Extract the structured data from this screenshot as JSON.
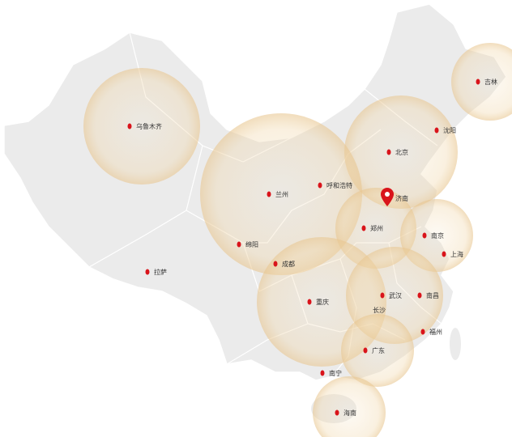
{
  "colors": {
    "land": "#ebebeb",
    "border": "#ffffff",
    "marker": "#d9141b",
    "halo": "#e8c690"
  },
  "highlight": {
    "name": "济南",
    "icon": "map-pin-icon"
  },
  "cities": [
    {
      "name": "乌鲁木齐",
      "dot": [
        160,
        156
      ],
      "halo": 72
    },
    {
      "name": "吉林",
      "dot": [
        590,
        101
      ],
      "halo": 48
    },
    {
      "name": "沈阳",
      "dot": [
        539,
        161
      ],
      "halo": 0
    },
    {
      "name": "北京",
      "dot": [
        480,
        188
      ],
      "halo": 70
    },
    {
      "name": "兰州",
      "dot": [
        332,
        240
      ],
      "halo": 100
    },
    {
      "name": "呼和浩特",
      "dot": [
        395,
        229
      ],
      "halo": 0
    },
    {
      "name": "济南",
      "dot": [
        478,
        245
      ],
      "halo": 0,
      "pin": true
    },
    {
      "name": "郑州",
      "dot": [
        449,
        282
      ],
      "halo": 50
    },
    {
      "name": "南京",
      "dot": [
        524,
        291
      ],
      "halo": 45
    },
    {
      "name": "上海",
      "dot": [
        548,
        314
      ],
      "halo": 0
    },
    {
      "name": "绵阳",
      "dot": [
        295,
        302
      ],
      "halo": 0
    },
    {
      "name": "成都",
      "dot": [
        340,
        326
      ],
      "halo": 0
    },
    {
      "name": "拉萨",
      "dot": [
        182,
        336
      ],
      "halo": 0
    },
    {
      "name": "重庆",
      "dot": [
        382,
        373
      ],
      "halo": 80
    },
    {
      "name": "武汉",
      "dot": [
        472,
        365
      ],
      "halo": 60
    },
    {
      "name": "南昌",
      "dot": [
        518,
        365
      ],
      "halo": 0
    },
    {
      "name": "长沙",
      "dot": [
        452,
        383
      ],
      "halo": 0,
      "nodot": true
    },
    {
      "name": "福州",
      "dot": [
        522,
        410
      ],
      "halo": 0
    },
    {
      "name": "广东",
      "dot": [
        451,
        433
      ],
      "halo": 45
    },
    {
      "name": "南宁",
      "dot": [
        398,
        461
      ],
      "halo": 0
    },
    {
      "name": "海南",
      "dot": [
        416,
        510
      ],
      "halo": 45
    }
  ]
}
